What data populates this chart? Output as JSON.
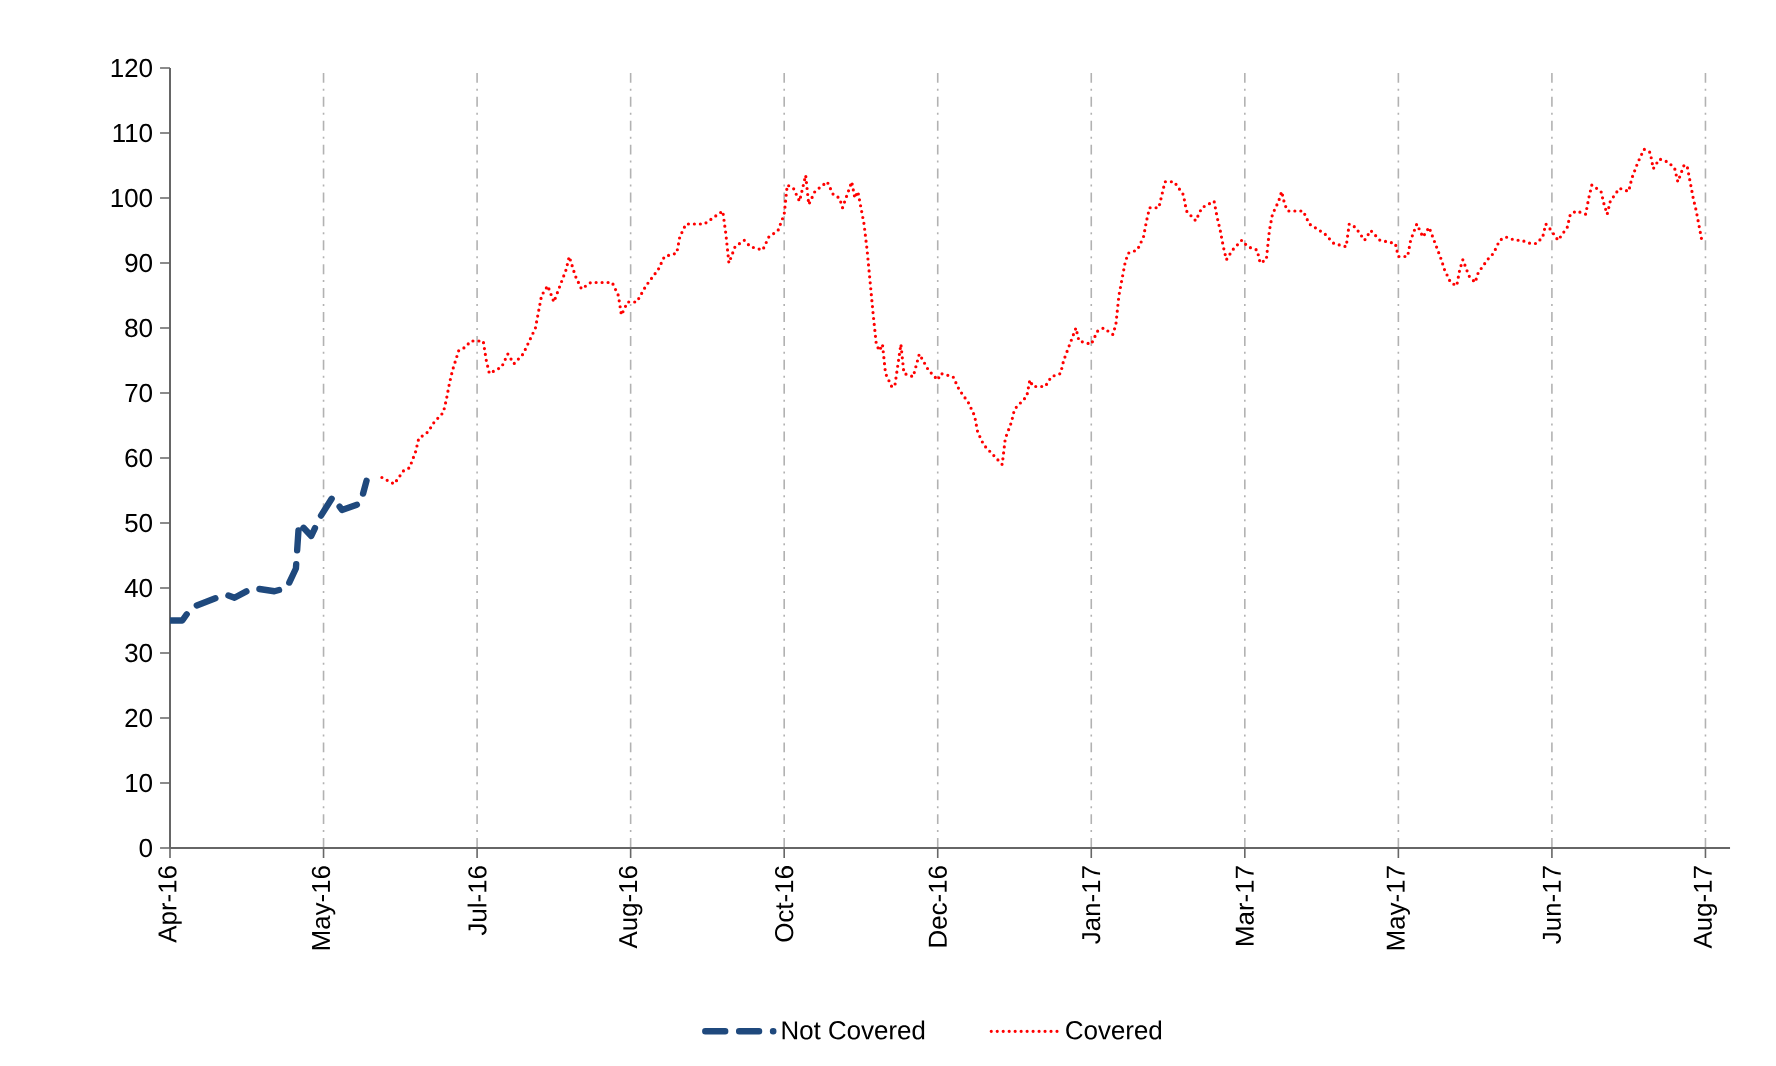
{
  "chart_data": {
    "type": "line",
    "xlim": [
      "2016-04-01",
      "2017-08-22"
    ],
    "ylim": [
      0,
      120
    ],
    "yticks": [
      0,
      10,
      20,
      30,
      40,
      50,
      60,
      70,
      80,
      90,
      100,
      110,
      120
    ],
    "xticks": [
      {
        "value": "2016-04-01",
        "label": "Apr-16"
      },
      {
        "value": "2016-05-21",
        "label": "May-16"
      },
      {
        "value": "2016-07-10",
        "label": "Jul-16"
      },
      {
        "value": "2016-08-29",
        "label": "Aug-16"
      },
      {
        "value": "2016-10-18",
        "label": "Oct-16"
      },
      {
        "value": "2016-12-07",
        "label": "Dec-16"
      },
      {
        "value": "2017-01-26",
        "label": "Jan-17"
      },
      {
        "value": "2017-03-17",
        "label": "Mar-17"
      },
      {
        "value": "2017-05-06",
        "label": "May-17"
      },
      {
        "value": "2017-06-25",
        "label": "Jun-17"
      },
      {
        "value": "2017-08-14",
        "label": "Aug-17"
      }
    ],
    "grid": "x",
    "legend": "bottom",
    "series": [
      {
        "name": "Not Covered",
        "color": "#1f497d",
        "line_style": "dashed",
        "x": [
          "2016-04-01",
          "2016-04-05",
          "2016-04-08",
          "2016-04-19",
          "2016-04-22",
          "2016-04-28",
          "2016-05-05",
          "2016-05-09",
          "2016-05-12",
          "2016-05-13",
          "2016-05-17",
          "2016-05-20",
          "2016-05-24",
          "2016-05-27",
          "2016-06-02",
          "2016-06-04"
        ],
        "values": [
          35,
          35,
          37,
          39,
          38.5,
          40,
          39.5,
          40,
          43,
          50,
          48,
          51,
          54,
          52,
          53,
          56.5
        ]
      },
      {
        "name": "Covered",
        "color": "#ff0000",
        "line_style": "dotted",
        "x": [
          "2016-06-09",
          "2016-06-13",
          "2016-06-16",
          "2016-06-18",
          "2016-06-20",
          "2016-06-21",
          "2016-06-24",
          "2016-06-26",
          "2016-06-29",
          "2016-06-30",
          "2016-07-01",
          "2016-07-02",
          "2016-07-04",
          "2016-07-06",
          "2016-07-08",
          "2016-07-12",
          "2016-07-13",
          "2016-07-14",
          "2016-07-18",
          "2016-07-20",
          "2016-07-22",
          "2016-07-25",
          "2016-07-27",
          "2016-07-29",
          "2016-07-30",
          "2016-07-31",
          "2016-08-02",
          "2016-08-04",
          "2016-08-06",
          "2016-08-08",
          "2016-08-09",
          "2016-08-11",
          "2016-08-13",
          "2016-08-16",
          "2016-08-19",
          "2016-08-23",
          "2016-08-25",
          "2016-08-26",
          "2016-08-28",
          "2016-08-31",
          "2016-09-03",
          "2016-09-07",
          "2016-09-09",
          "2016-09-13",
          "2016-09-14",
          "2016-09-16",
          "2016-09-19",
          "2016-09-22",
          "2016-09-25",
          "2016-09-28",
          "2016-09-29",
          "2016-09-30",
          "2016-10-02",
          "2016-10-05",
          "2016-10-07",
          "2016-10-11",
          "2016-10-13",
          "2016-10-16",
          "2016-10-18",
          "2016-10-19",
          "2016-10-21",
          "2016-10-23",
          "2016-10-25",
          "2016-10-26",
          "2016-10-28",
          "2016-11-01",
          "2016-11-03",
          "2016-11-05",
          "2016-11-06",
          "2016-11-09",
          "2016-11-10",
          "2016-11-11",
          "2016-11-12",
          "2016-11-13",
          "2016-11-14",
          "2016-11-15",
          "2016-11-16",
          "2016-11-17",
          "2016-11-18",
          "2016-11-19",
          "2016-11-20",
          "2016-11-22",
          "2016-11-23",
          "2016-11-25",
          "2016-11-26",
          "2016-11-29",
          "2016-12-01",
          "2016-12-04",
          "2016-12-07",
          "2016-12-08",
          "2016-12-12",
          "2016-12-14",
          "2016-12-17",
          "2016-12-19",
          "2016-12-20",
          "2016-12-22",
          "2016-12-24",
          "2016-12-28",
          "2016-12-29",
          "2016-12-31",
          "2017-01-01",
          "2017-01-05",
          "2017-01-06",
          "2017-01-07",
          "2017-01-11",
          "2017-01-13",
          "2017-01-16",
          "2017-01-17",
          "2017-01-19",
          "2017-01-21",
          "2017-01-22",
          "2017-01-26",
          "2017-01-28",
          "2017-01-30",
          "2017-02-02",
          "2017-02-03",
          "2017-02-04",
          "2017-02-05",
          "2017-02-06",
          "2017-02-07",
          "2017-02-10",
          "2017-02-12",
          "2017-02-13",
          "2017-02-14",
          "2017-02-17",
          "2017-02-19",
          "2017-02-22",
          "2017-02-25",
          "2017-02-26",
          "2017-03-01",
          "2017-03-03",
          "2017-03-07",
          "2017-03-08",
          "2017-03-09",
          "2017-03-10",
          "2017-03-11",
          "2017-03-13",
          "2017-03-16",
          "2017-03-18",
          "2017-03-21",
          "2017-03-22",
          "2017-03-24",
          "2017-03-25",
          "2017-03-26",
          "2017-03-28",
          "2017-03-29",
          "2017-03-30",
          "2017-03-31",
          "2017-04-05",
          "2017-04-07",
          "2017-04-12",
          "2017-04-15",
          "2017-04-19",
          "2017-04-20",
          "2017-04-22",
          "2017-04-25",
          "2017-04-27",
          "2017-04-30",
          "2017-05-05",
          "2017-05-06",
          "2017-05-09",
          "2017-05-10",
          "2017-05-12",
          "2017-05-13",
          "2017-05-14",
          "2017-05-16",
          "2017-05-18",
          "2017-05-20",
          "2017-05-21",
          "2017-05-23",
          "2017-05-25",
          "2017-05-26",
          "2017-05-27",
          "2017-05-29",
          "2017-05-31",
          "2017-06-01",
          "2017-06-04",
          "2017-06-06",
          "2017-06-08",
          "2017-06-10",
          "2017-06-13",
          "2017-06-15",
          "2017-06-18",
          "2017-06-20",
          "2017-06-22",
          "2017-06-23",
          "2017-06-24",
          "2017-06-27",
          "2017-06-30",
          "2017-07-01",
          "2017-07-03",
          "2017-07-06",
          "2017-07-07",
          "2017-07-08",
          "2017-07-11",
          "2017-07-12",
          "2017-07-13",
          "2017-07-14",
          "2017-07-17",
          "2017-07-20",
          "2017-07-21",
          "2017-07-23",
          "2017-07-25",
          "2017-07-27",
          "2017-07-28",
          "2017-07-30",
          "2017-08-02",
          "2017-08-04",
          "2017-08-05",
          "2017-08-07",
          "2017-08-08",
          "2017-08-09",
          "2017-08-10",
          "2017-08-11",
          "2017-08-12",
          "2017-08-13"
        ],
        "values": [
          57,
          56,
          58,
          58.5,
          61,
          63,
          64,
          65.5,
          67,
          69,
          71.5,
          73.5,
          76.5,
          77,
          78,
          78,
          75,
          73,
          74,
          76,
          74.5,
          76,
          78,
          80,
          82.5,
          85,
          86.5,
          84,
          86.5,
          89,
          91,
          88,
          86,
          87,
          87,
          87,
          85,
          82,
          84,
          84,
          86.5,
          89,
          91,
          91.5,
          94,
          96,
          96,
          96,
          97,
          98,
          94.5,
          90,
          92.5,
          93.5,
          92.5,
          92,
          94,
          95,
          97.5,
          102,
          101.5,
          99.5,
          103.5,
          99,
          101,
          102.5,
          100.5,
          100,
          98.5,
          102.5,
          100,
          101,
          98.5,
          96,
          92,
          87,
          82,
          77.5,
          76.5,
          77.5,
          73,
          71,
          71,
          77.5,
          73,
          72.5,
          76,
          73.5,
          72,
          73,
          72.5,
          70.5,
          68.5,
          66.5,
          64,
          62,
          61,
          59,
          63,
          65.5,
          67.5,
          69.5,
          72,
          71,
          71,
          72.5,
          73,
          75,
          77.5,
          80,
          78,
          77.5,
          79.5,
          80,
          79,
          80.5,
          85,
          87.5,
          90,
          91.5,
          92,
          94,
          96.5,
          98.5,
          98.5,
          102.5,
          102.5,
          100.5,
          98,
          96.5,
          98.5,
          99.5,
          97,
          95,
          92.5,
          90.5,
          92,
          93.5,
          92.5,
          92,
          90,
          90.5,
          95,
          97.5,
          99.5,
          101,
          99,
          98,
          98,
          96,
          94.5,
          93,
          92.5,
          96,
          95.5,
          93.5,
          95,
          93.5,
          93,
          91,
          91,
          93.5,
          96,
          95,
          94,
          95.5,
          93,
          90.5,
          89,
          87,
          86.5,
          89,
          90.5,
          88,
          87,
          88.5,
          90.5,
          91.5,
          93.5,
          94,
          93.5,
          93.5,
          93,
          93,
          94,
          96,
          95.5,
          93.5,
          95.5,
          97.5,
          98,
          97.5,
          100,
          102,
          101,
          99,
          97.5,
          99.5,
          101.5,
          101,
          103,
          105.5,
          107.5,
          107,
          104.5,
          106,
          105.5,
          104.5,
          102.5,
          105,
          105,
          102.5,
          100,
          98,
          95.5,
          93
        ]
      }
    ]
  }
}
